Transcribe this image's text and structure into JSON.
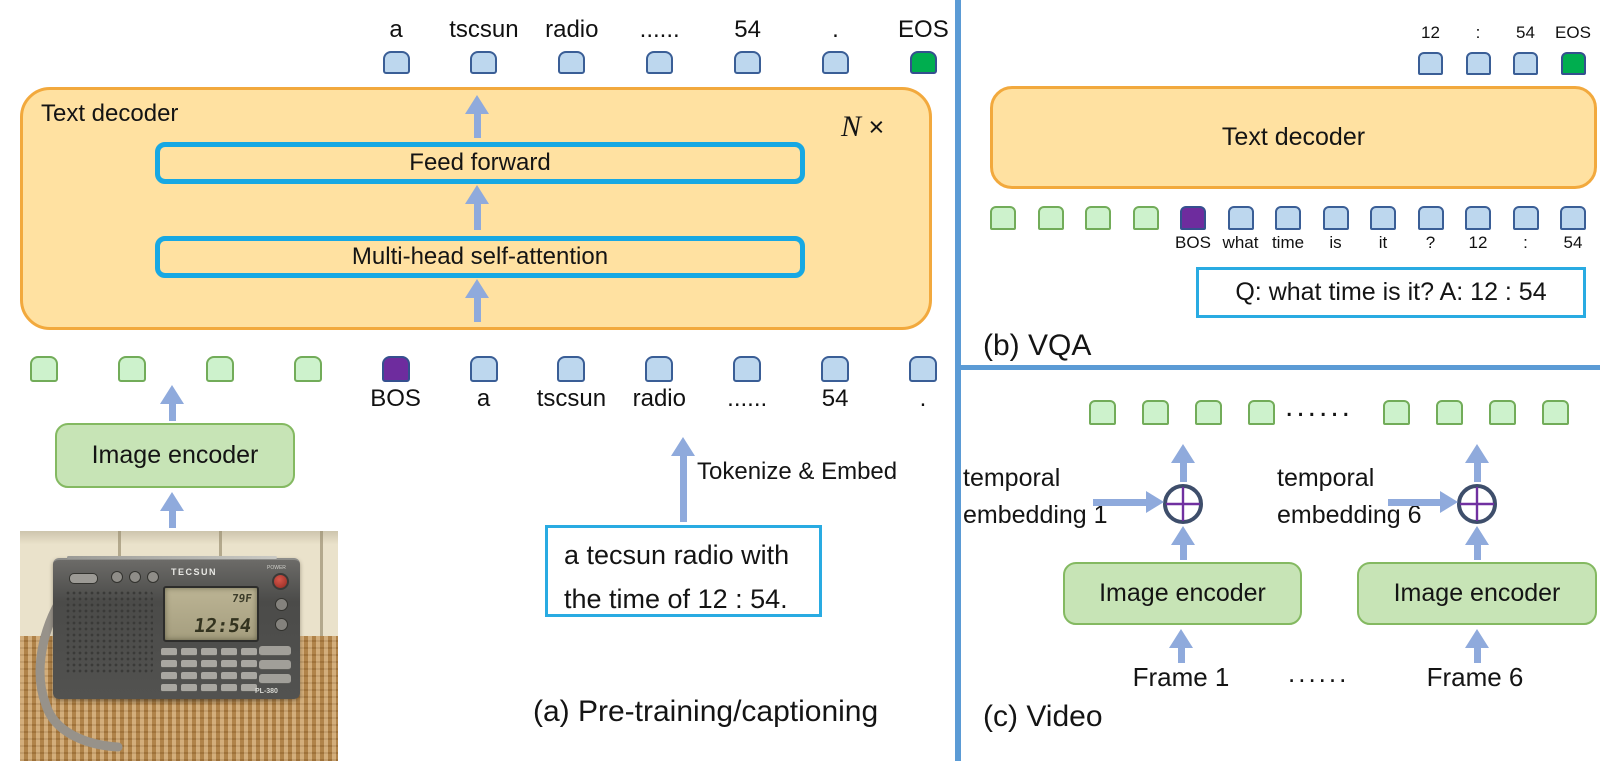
{
  "colors": {
    "token_blue": "#BDD7EE",
    "token_blue_border": "#3A5E96",
    "token_green": "#CDF2CC",
    "token_green_border": "#72AC59",
    "token_purple": "#6E2C9E",
    "token_eos": "#00AE4F",
    "dark_border": "#35508F",
    "decoder_fill": "#FFE1A1",
    "decoder_border": "#F2A93D",
    "inner_border": "#17A8E3",
    "encoder_fill": "#C7E4B6",
    "encoder_border": "#84B961",
    "arrow": "#8FAADC",
    "divider": "#5B9BD5",
    "qbox_border": "#29ABE2",
    "circle_ring": "#3E4E6B",
    "circle_plus": "#7030A0"
  },
  "panel_a": {
    "caption": "(a) Pre-training/captioning",
    "decoder_title": "Text decoder",
    "n_label": "N",
    "times_label": "×",
    "feed_forward": "Feed forward",
    "self_attention": "Multi-head self-attention",
    "image_encoder": "Image encoder",
    "tokenize_label": "Tokenize & Embed",
    "caption_box": {
      "line1": "a tecsun radio with",
      "line2": "the time of 12 : 54."
    },
    "top_tokens": [
      {
        "kind": "text",
        "label": "a"
      },
      {
        "kind": "text",
        "label": "tscsun"
      },
      {
        "kind": "text",
        "label": "radio"
      },
      {
        "kind": "text",
        "label": "......"
      },
      {
        "kind": "text",
        "label": "54"
      },
      {
        "kind": "text",
        "label": "."
      },
      {
        "kind": "eos",
        "label": "EOS"
      }
    ],
    "bottom_tokens": [
      {
        "kind": "image"
      },
      {
        "kind": "image"
      },
      {
        "kind": "image"
      },
      {
        "kind": "image"
      },
      {
        "kind": "bos",
        "label": "BOS"
      },
      {
        "kind": "text",
        "label": "a"
      },
      {
        "kind": "text",
        "label": "tscsun"
      },
      {
        "kind": "text",
        "label": "radio"
      },
      {
        "kind": "text",
        "label": "......"
      },
      {
        "kind": "text",
        "label": "54"
      },
      {
        "kind": "text",
        "label": "."
      }
    ],
    "photo": {
      "brand": "TECSUN",
      "power_label": "POWER",
      "model": "PL-380",
      "lcd_temp": "79F",
      "lcd_time": "12:54"
    }
  },
  "panel_b": {
    "caption": "(b) VQA",
    "decoder_title": "Text decoder",
    "qa_text": "Q: what time is it? A: 12 : 54",
    "top_tokens": [
      {
        "kind": "text",
        "label": "12"
      },
      {
        "kind": "text",
        "label": ":"
      },
      {
        "kind": "text",
        "label": "54"
      },
      {
        "kind": "eos",
        "label": "EOS"
      }
    ],
    "bottom_tokens": [
      {
        "kind": "image"
      },
      {
        "kind": "image"
      },
      {
        "kind": "image"
      },
      {
        "kind": "image"
      },
      {
        "kind": "bos",
        "label": "BOS"
      },
      {
        "kind": "text",
        "label": "what"
      },
      {
        "kind": "text",
        "label": "time"
      },
      {
        "kind": "text",
        "label": "is"
      },
      {
        "kind": "text",
        "label": "it"
      },
      {
        "kind": "text",
        "label": "?"
      },
      {
        "kind": "text",
        "label": "12"
      },
      {
        "kind": "text",
        "label": ":"
      },
      {
        "kind": "text",
        "label": "54"
      }
    ]
  },
  "panel_c": {
    "caption": "(c) Video",
    "dots_top": "......",
    "dots_bottom": "......",
    "temporal_left": {
      "line1": "temporal",
      "line2": "embedding 1"
    },
    "temporal_right": {
      "line1": "temporal",
      "line2": "embedding 6"
    },
    "image_encoder_left": "Image encoder",
    "image_encoder_right": "Image encoder",
    "frame_left": "Frame 1",
    "frame_right": "Frame 6",
    "tokens_left": [
      {
        "kind": "image"
      },
      {
        "kind": "image"
      },
      {
        "kind": "image"
      },
      {
        "kind": "image"
      }
    ],
    "tokens_right": [
      {
        "kind": "image"
      },
      {
        "kind": "image"
      },
      {
        "kind": "image"
      },
      {
        "kind": "image"
      }
    ]
  }
}
